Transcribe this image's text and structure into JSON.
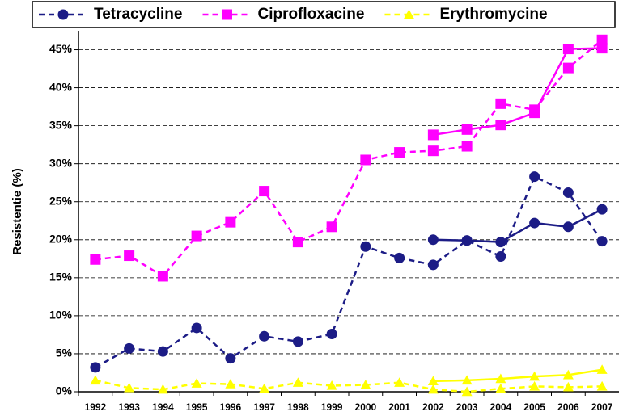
{
  "chart_data": {
    "type": "line",
    "y_label": "Resistentie (%)",
    "categories": [
      "1992",
      "1993",
      "1994",
      "1995",
      "1996",
      "1997",
      "1998",
      "1999",
      "2000",
      "2001",
      "2002",
      "2003",
      "2004",
      "2005",
      "2006",
      "2007"
    ],
    "ylim": [
      0,
      47.5
    ],
    "yticks": [
      {
        "value": 0,
        "label": "0%"
      },
      {
        "value": 5,
        "label": "5%"
      },
      {
        "value": 10,
        "label": "10%"
      },
      {
        "value": 15,
        "label": "15%"
      },
      {
        "value": 20,
        "label": "20%"
      },
      {
        "value": 25,
        "label": "25%"
      },
      {
        "value": 30,
        "label": "30%"
      },
      {
        "value": 35,
        "label": "35%"
      },
      {
        "value": 40,
        "label": "40%"
      },
      {
        "value": 45,
        "label": "45%"
      }
    ],
    "grid": true,
    "legend": "top",
    "series": [
      {
        "name": "Tetracycline",
        "color": "#1c1c86",
        "marker": "circle",
        "line_style": "dashed",
        "values": [
          3.2,
          5.7,
          5.3,
          8.4,
          4.4,
          7.3,
          6.6,
          7.6,
          19.1,
          17.6,
          16.7,
          19.9,
          17.8,
          28.3,
          26.2,
          19.8
        ]
      },
      {
        "name": "Ciprofloxacine",
        "color": "#ff00ff",
        "marker": "square",
        "line_style": "dashed",
        "values": [
          17.4,
          17.9,
          15.2,
          20.5,
          22.3,
          26.4,
          19.7,
          21.7,
          30.5,
          31.5,
          31.7,
          32.3,
          37.9,
          37.1,
          42.6,
          46.3
        ]
      },
      {
        "name": "Erythromycine",
        "color": "#ffff00",
        "marker": "triangle",
        "line_style": "dashed",
        "values": [
          1.5,
          0.5,
          0.3,
          1.1,
          1.0,
          0.4,
          1.2,
          0.8,
          0.9,
          1.2,
          0.3,
          0.0,
          0.4,
          0.7,
          0.6,
          0.7
        ]
      },
      {
        "color": "#1c1c86",
        "marker": "circle",
        "line_style": "solid",
        "values": [
          null,
          null,
          null,
          null,
          null,
          null,
          null,
          null,
          null,
          null,
          20.0,
          19.9,
          19.7,
          22.2,
          21.7,
          24.0
        ]
      },
      {
        "color": "#ff00ff",
        "marker": "square",
        "line_style": "solid",
        "values": [
          null,
          null,
          null,
          null,
          null,
          null,
          null,
          null,
          null,
          null,
          33.8,
          34.5,
          35.1,
          36.7,
          45.1,
          45.2
        ]
      },
      {
        "color": "#ffff00",
        "marker": "triangle",
        "line_style": "solid",
        "values": [
          null,
          null,
          null,
          null,
          null,
          null,
          null,
          null,
          null,
          null,
          1.4,
          1.5,
          1.7,
          2.0,
          2.2,
          2.9
        ]
      }
    ]
  }
}
